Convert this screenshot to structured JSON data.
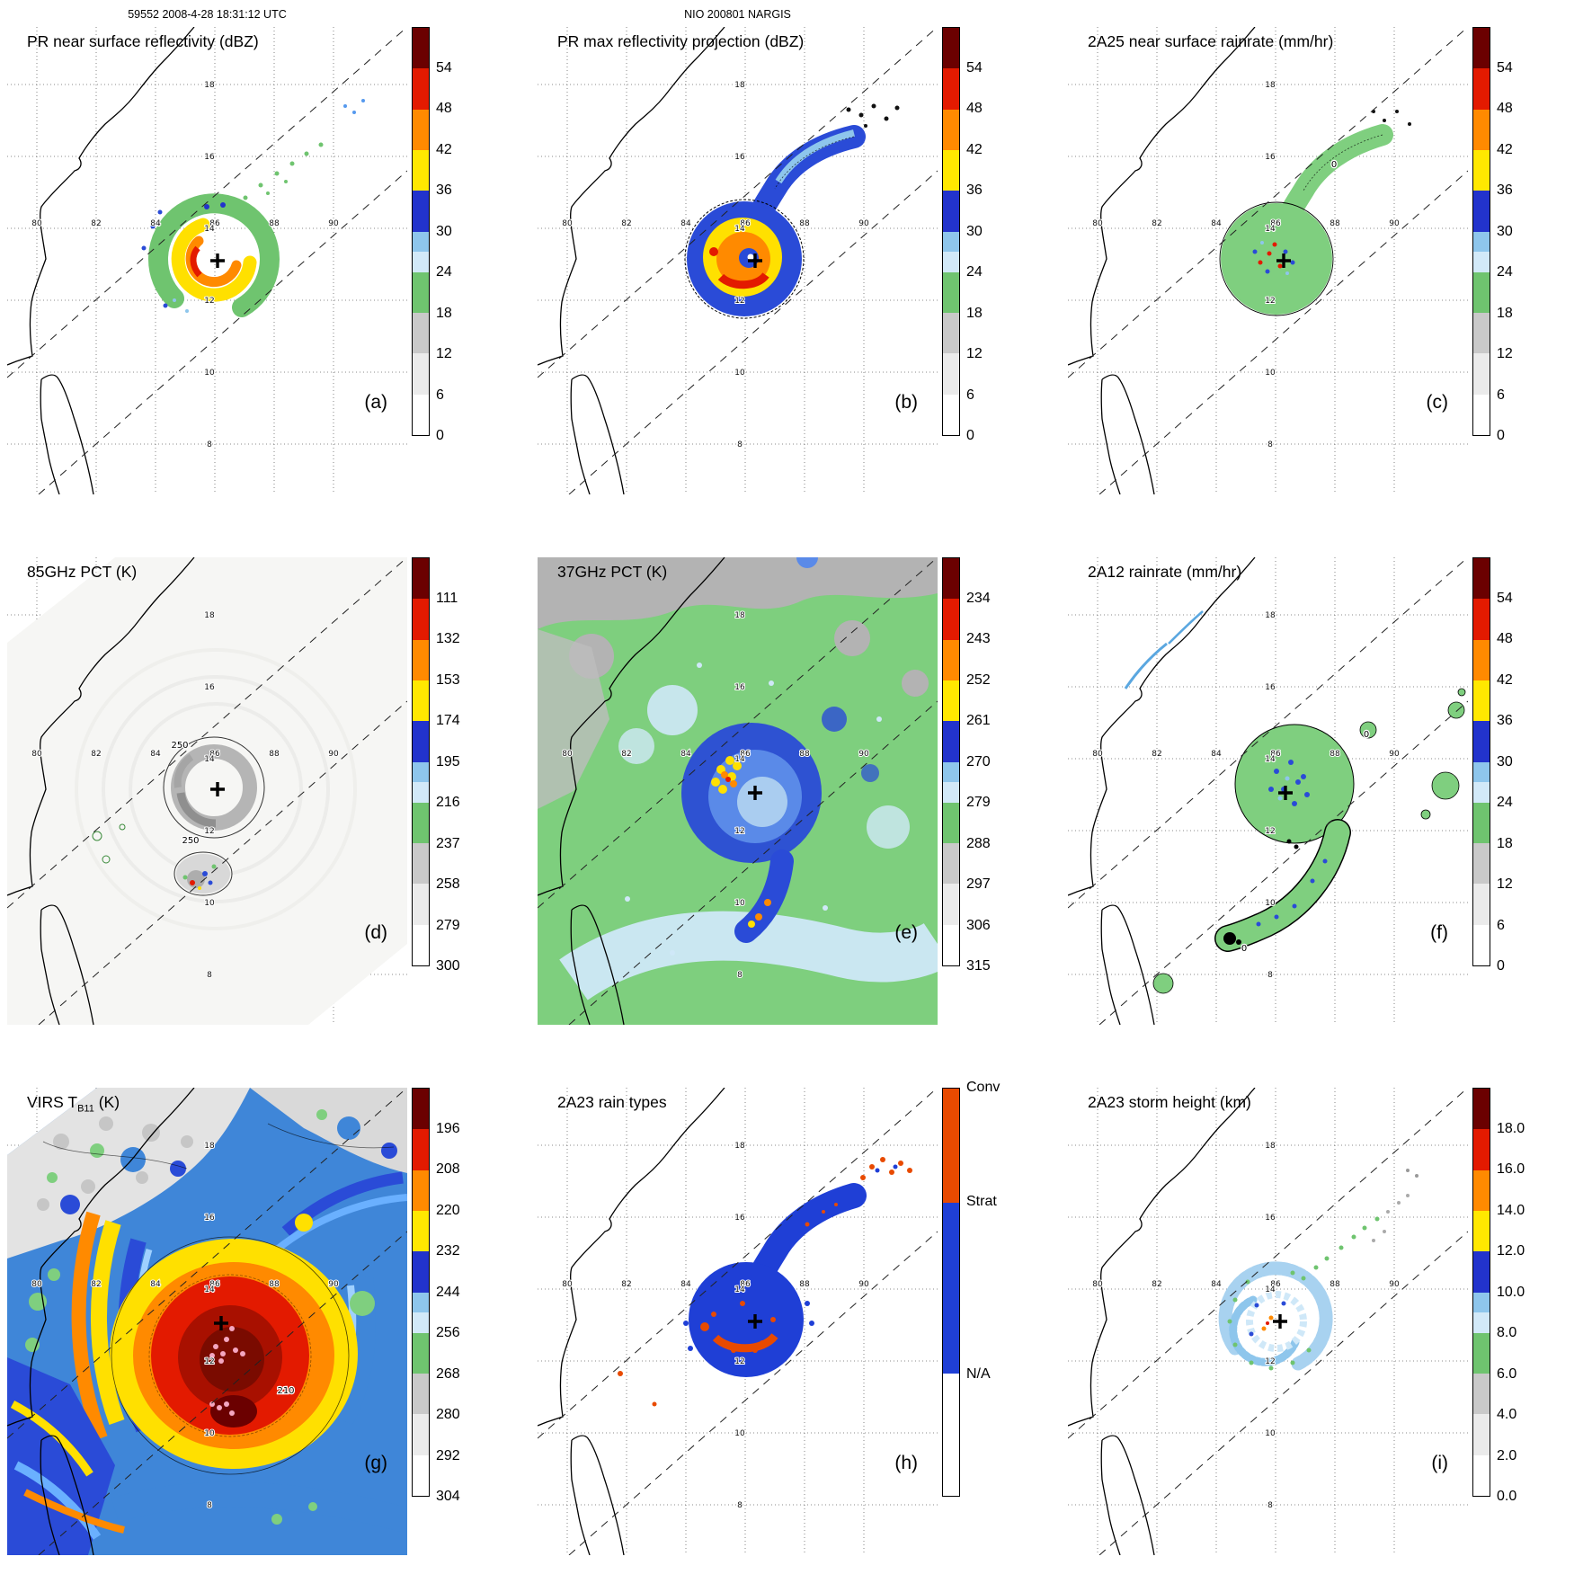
{
  "figure": {
    "left_header": "59552 2008-4-28 18:31:12 UTC",
    "center_header": "NIO 200801 NARGIS"
  },
  "map": {
    "lon_labels": [
      "80",
      "82",
      "84",
      "86",
      "88",
      "90"
    ],
    "lat_labels": [
      "18",
      "16",
      "14",
      "12",
      "10",
      "8"
    ]
  },
  "panels": [
    {
      "letter": "(a)",
      "title": "PR near surface reflectivity (dBZ)",
      "cbar": "dbz"
    },
    {
      "letter": "(b)",
      "title": "PR max reflectivity projection (dBZ)",
      "cbar": "dbz"
    },
    {
      "letter": "(c)",
      "title": "2A25 near surface rainrate (mm/hr)",
      "cbar": "dbz",
      "contours": [
        "0"
      ]
    },
    {
      "letter": "(d)",
      "title": "85GHz PCT (K)",
      "cbar": "pct85",
      "contours": [
        "250",
        "250"
      ]
    },
    {
      "letter": "(e)",
      "title": "37GHz PCT (K)",
      "cbar": "pct37"
    },
    {
      "letter": "(f)",
      "title": "2A12 rainrate (mm/hr)",
      "cbar": "dbz",
      "contours": [
        "0",
        "0"
      ]
    },
    {
      "letter": "(g)",
      "title_pre": "VIRS T",
      "title_sub": "B11",
      "title_post": " (K)",
      "cbar": "virs",
      "contours": [
        "210"
      ]
    },
    {
      "letter": "(h)",
      "title": "2A23 rain types",
      "cbar": "raintype"
    },
    {
      "letter": "(i)",
      "title": "2A23 storm height (km)",
      "cbar": "height"
    }
  ],
  "colorbars": {
    "dbz": {
      "segments": [
        {
          "c": "#ffffff",
          "f": 0.1
        },
        {
          "c": "#ebebeb",
          "f": 0.1
        },
        {
          "c": "#c9c9c9",
          "f": 0.1
        },
        {
          "c": "#6fc46f",
          "f": 0.1
        },
        {
          "c": "#d2e9f8",
          "f": 0.05
        },
        {
          "c": "#8ec6ec",
          "f": 0.05
        },
        {
          "c": "#2233cc",
          "f": 0.1
        },
        {
          "c": "#ffe800",
          "f": 0.1
        },
        {
          "c": "#ff8a00",
          "f": 0.1
        },
        {
          "c": "#e31a00",
          "f": 0.1
        },
        {
          "c": "#6b0000",
          "f": 0.1
        }
      ],
      "ticks": [
        {
          "t": "0",
          "p": 0.0
        },
        {
          "t": "6",
          "p": 0.1
        },
        {
          "t": "12",
          "p": 0.2
        },
        {
          "t": "18",
          "p": 0.3
        },
        {
          "t": "24",
          "p": 0.4
        },
        {
          "t": "30",
          "p": 0.5
        },
        {
          "t": "36",
          "p": 0.6
        },
        {
          "t": "42",
          "p": 0.7
        },
        {
          "t": "48",
          "p": 0.8
        },
        {
          "t": "54",
          "p": 0.9
        }
      ]
    },
    "pct85": {
      "segments": [
        {
          "c": "#ffffff",
          "f": 0.1
        },
        {
          "c": "#ebebeb",
          "f": 0.1
        },
        {
          "c": "#c9c9c9",
          "f": 0.1
        },
        {
          "c": "#6fc46f",
          "f": 0.1
        },
        {
          "c": "#d2e9f8",
          "f": 0.05
        },
        {
          "c": "#8ec6ec",
          "f": 0.05
        },
        {
          "c": "#2233cc",
          "f": 0.1
        },
        {
          "c": "#ffe800",
          "f": 0.1
        },
        {
          "c": "#ff8a00",
          "f": 0.1
        },
        {
          "c": "#e31a00",
          "f": 0.1
        },
        {
          "c": "#6b0000",
          "f": 0.1
        }
      ],
      "ticks": [
        {
          "t": "300",
          "p": 0.0
        },
        {
          "t": "279",
          "p": 0.1
        },
        {
          "t": "258",
          "p": 0.2
        },
        {
          "t": "237",
          "p": 0.3
        },
        {
          "t": "216",
          "p": 0.4
        },
        {
          "t": "195",
          "p": 0.5
        },
        {
          "t": "174",
          "p": 0.6
        },
        {
          "t": "153",
          "p": 0.7
        },
        {
          "t": "132",
          "p": 0.8
        },
        {
          "t": "111",
          "p": 0.9
        }
      ]
    },
    "pct37": {
      "segments": [
        {
          "c": "#ffffff",
          "f": 0.1
        },
        {
          "c": "#ebebeb",
          "f": 0.1
        },
        {
          "c": "#c9c9c9",
          "f": 0.1
        },
        {
          "c": "#6fc46f",
          "f": 0.1
        },
        {
          "c": "#d2e9f8",
          "f": 0.05
        },
        {
          "c": "#8ec6ec",
          "f": 0.05
        },
        {
          "c": "#2233cc",
          "f": 0.1
        },
        {
          "c": "#ffe800",
          "f": 0.1
        },
        {
          "c": "#ff8a00",
          "f": 0.1
        },
        {
          "c": "#e31a00",
          "f": 0.1
        },
        {
          "c": "#6b0000",
          "f": 0.1
        }
      ],
      "ticks": [
        {
          "t": "315",
          "p": 0.0
        },
        {
          "t": "306",
          "p": 0.1
        },
        {
          "t": "297",
          "p": 0.2
        },
        {
          "t": "288",
          "p": 0.3
        },
        {
          "t": "279",
          "p": 0.4
        },
        {
          "t": "270",
          "p": 0.5
        },
        {
          "t": "261",
          "p": 0.6
        },
        {
          "t": "252",
          "p": 0.7
        },
        {
          "t": "243",
          "p": 0.8
        },
        {
          "t": "234",
          "p": 0.9
        }
      ]
    },
    "virs": {
      "segments": [
        {
          "c": "#ffffff",
          "f": 0.1
        },
        {
          "c": "#ebebeb",
          "f": 0.1
        },
        {
          "c": "#c9c9c9",
          "f": 0.1
        },
        {
          "c": "#6fc46f",
          "f": 0.1
        },
        {
          "c": "#d2e9f8",
          "f": 0.05
        },
        {
          "c": "#8ec6ec",
          "f": 0.05
        },
        {
          "c": "#2233cc",
          "f": 0.1
        },
        {
          "c": "#ffe800",
          "f": 0.1
        },
        {
          "c": "#ff8a00",
          "f": 0.1
        },
        {
          "c": "#e31a00",
          "f": 0.1
        },
        {
          "c": "#6b0000",
          "f": 0.1
        }
      ],
      "ticks": [
        {
          "t": "304",
          "p": 0.0
        },
        {
          "t": "292",
          "p": 0.1
        },
        {
          "t": "280",
          "p": 0.2
        },
        {
          "t": "268",
          "p": 0.3
        },
        {
          "t": "256",
          "p": 0.4
        },
        {
          "t": "244",
          "p": 0.5
        },
        {
          "t": "232",
          "p": 0.6
        },
        {
          "t": "220",
          "p": 0.7
        },
        {
          "t": "208",
          "p": 0.8
        },
        {
          "t": "196",
          "p": 0.9
        }
      ]
    },
    "height": {
      "segments": [
        {
          "c": "#ffffff",
          "f": 0.1
        },
        {
          "c": "#ebebeb",
          "f": 0.1
        },
        {
          "c": "#c9c9c9",
          "f": 0.1
        },
        {
          "c": "#6fc46f",
          "f": 0.1
        },
        {
          "c": "#d2e9f8",
          "f": 0.05
        },
        {
          "c": "#8ec6ec",
          "f": 0.05
        },
        {
          "c": "#2233cc",
          "f": 0.1
        },
        {
          "c": "#ffe800",
          "f": 0.1
        },
        {
          "c": "#ff8a00",
          "f": 0.1
        },
        {
          "c": "#e31a00",
          "f": 0.1
        },
        {
          "c": "#6b0000",
          "f": 0.1
        }
      ],
      "ticks": [
        {
          "t": "0.0",
          "p": 0.0
        },
        {
          "t": "2.0",
          "p": 0.1
        },
        {
          "t": "4.0",
          "p": 0.2
        },
        {
          "t": "6.0",
          "p": 0.3
        },
        {
          "t": "8.0",
          "p": 0.4
        },
        {
          "t": "10.0",
          "p": 0.5
        },
        {
          "t": "12.0",
          "p": 0.6
        },
        {
          "t": "14.0",
          "p": 0.7
        },
        {
          "t": "16.0",
          "p": 0.8
        },
        {
          "t": "18.0",
          "p": 0.9
        }
      ]
    },
    "raintype": {
      "segments": [
        {
          "c": "#ffffff",
          "f": 0.3
        },
        {
          "c": "#1f3fd6",
          "f": 0.42
        },
        {
          "c": "#e84a00",
          "f": 0.28
        }
      ],
      "ticks": [
        {
          "t": "N/A",
          "p": 0.3
        },
        {
          "t": "Strat",
          "p": 0.72
        },
        {
          "t": "Conv",
          "p": 1.0
        }
      ]
    }
  },
  "chart_data": [
    {
      "type": "heatmap",
      "panel": "(a)",
      "title": "PR near surface reflectivity (dBZ)",
      "units": "dBZ",
      "colorbar_ticks": [
        0,
        6,
        12,
        18,
        24,
        30,
        36,
        42,
        48,
        54
      ],
      "lon_ticks": [
        80,
        82,
        84,
        86,
        88,
        90
      ],
      "lat_ticks": [
        8,
        10,
        12,
        14,
        16,
        18
      ],
      "annotation": "59552 2008-4-28 18:31:12 UTC",
      "storm_center_lonlat_approx": [
        86,
        13
      ],
      "legend_position": "right"
    },
    {
      "type": "heatmap",
      "panel": "(b)",
      "title": "PR max reflectivity projection (dBZ)",
      "units": "dBZ",
      "colorbar_ticks": [
        0,
        6,
        12,
        18,
        24,
        30,
        36,
        42,
        48,
        54
      ],
      "lon_ticks": [
        80,
        82,
        84,
        86,
        88,
        90
      ],
      "lat_ticks": [
        8,
        10,
        12,
        14,
        16,
        18
      ],
      "annotation": "NIO 200801 NARGIS",
      "storm_center_lonlat_approx": [
        86,
        13
      ]
    },
    {
      "type": "heatmap",
      "panel": "(c)",
      "title": "2A25 near surface rainrate (mm/hr)",
      "units": "mm/hr",
      "colorbar_ticks": [
        0,
        6,
        12,
        18,
        24,
        30,
        36,
        42,
        48,
        54
      ],
      "lon_ticks": [
        80,
        82,
        84,
        86,
        88,
        90
      ],
      "lat_ticks": [
        8,
        10,
        12,
        14,
        16,
        18
      ],
      "contour_labels": [
        0
      ],
      "storm_center_lonlat_approx": [
        86,
        13
      ]
    },
    {
      "type": "heatmap",
      "panel": "(d)",
      "title": "85GHz PCT (K)",
      "units": "K",
      "colorbar_ticks_bottom_to_top": [
        300,
        279,
        258,
        237,
        216,
        195,
        174,
        153,
        132,
        111
      ],
      "lon_ticks": [
        80,
        82,
        84,
        86,
        88,
        90
      ],
      "lat_ticks": [
        8,
        10,
        12,
        14,
        16,
        18
      ],
      "contour_labels": [
        250
      ],
      "storm_center_lonlat_approx": [
        86,
        13
      ]
    },
    {
      "type": "heatmap",
      "panel": "(e)",
      "title": "37GHz PCT (K)",
      "units": "K",
      "colorbar_ticks_bottom_to_top": [
        315,
        306,
        297,
        288,
        279,
        270,
        261,
        252,
        243,
        234
      ],
      "lon_ticks": [
        80,
        82,
        84,
        86,
        88,
        90
      ],
      "lat_ticks": [
        8,
        10,
        12,
        14,
        16,
        18
      ],
      "storm_center_lonlat_approx": [
        86,
        13
      ]
    },
    {
      "type": "heatmap",
      "panel": "(f)",
      "title": "2A12 rainrate (mm/hr)",
      "units": "mm/hr",
      "colorbar_ticks": [
        0,
        6,
        12,
        18,
        24,
        30,
        36,
        42,
        48,
        54
      ],
      "lon_ticks": [
        80,
        82,
        84,
        86,
        88,
        90
      ],
      "lat_ticks": [
        8,
        10,
        12,
        14,
        16,
        18
      ],
      "contour_labels": [
        0
      ],
      "storm_center_lonlat_approx": [
        86,
        13
      ]
    },
    {
      "type": "heatmap",
      "panel": "(g)",
      "title": "VIRS TB11 (K)",
      "units": "K",
      "colorbar_ticks_bottom_to_top": [
        304,
        292,
        280,
        268,
        256,
        244,
        232,
        220,
        208,
        196
      ],
      "lon_ticks": [
        80,
        82,
        84,
        86,
        88,
        90
      ],
      "lat_ticks": [
        8,
        10,
        12,
        14,
        16,
        18
      ],
      "contour_labels": [
        210
      ],
      "storm_center_lonlat_approx": [
        86,
        13
      ]
    },
    {
      "type": "heatmap",
      "panel": "(h)",
      "title": "2A23 rain types",
      "categories": [
        "Conv",
        "Strat",
        "N/A"
      ],
      "lon_ticks": [
        80,
        82,
        84,
        86,
        88,
        90
      ],
      "lat_ticks": [
        8,
        10,
        12,
        14,
        16,
        18
      ],
      "storm_center_lonlat_approx": [
        86,
        13
      ]
    },
    {
      "type": "heatmap",
      "panel": "(i)",
      "title": "2A23 storm height (km)",
      "units": "km",
      "colorbar_ticks": [
        0.0,
        2.0,
        4.0,
        6.0,
        8.0,
        10.0,
        12.0,
        14.0,
        16.0,
        18.0
      ],
      "lon_ticks": [
        80,
        82,
        84,
        86,
        88,
        90
      ],
      "lat_ticks": [
        8,
        10,
        12,
        14,
        16,
        18
      ],
      "storm_center_lonlat_approx": [
        86,
        13
      ]
    }
  ]
}
